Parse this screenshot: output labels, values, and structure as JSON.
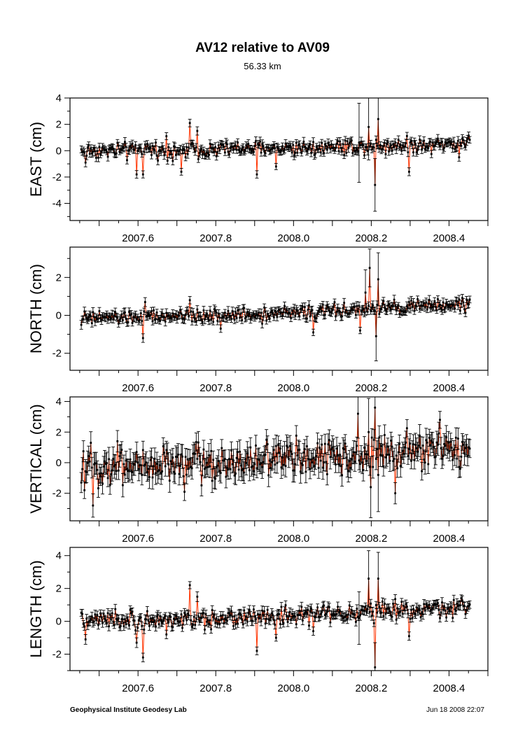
{
  "header": {
    "title": "AV12 relative to AV09",
    "subtitle": "56.33 km"
  },
  "footer": {
    "credit": "Geophysical Institute Geodesy Lab",
    "timestamp": "Jun 18 2008 22:07"
  },
  "colors": {
    "line": "#ff3300",
    "points": "#000000",
    "frame": "#000000"
  },
  "chart_data": [
    {
      "type": "line",
      "name": "east",
      "ylabel": "EAST (cm)",
      "xlim": [
        2007.425,
        2008.5
      ],
      "ylim": [
        -5.3,
        4.0
      ],
      "yticks": [
        -4,
        -2,
        0,
        2,
        4
      ],
      "xticks": [
        2007.6,
        2007.8,
        2008.0,
        2008.2,
        2008.4
      ],
      "xticklabels": [
        "2007.6",
        "2007.8",
        "2008.0",
        "2008.2",
        "2008.4"
      ],
      "series": {
        "x_start": 2007.454,
        "x_end": 2008.454,
        "baseline": 0.0,
        "trend": 0.6,
        "noise": 0.3,
        "sigma": 0.28
      },
      "features": [
        {
          "x": 2007.465,
          "y": -0.9
        },
        {
          "x": 2007.595,
          "y": -1.8
        },
        {
          "x": 2007.612,
          "y": -1.8
        },
        {
          "x": 2007.672,
          "y": 1.1
        },
        {
          "x": 2007.712,
          "y": -1.6
        },
        {
          "x": 2007.732,
          "y": 2.1
        },
        {
          "x": 2007.752,
          "y": 1.5
        },
        {
          "x": 2007.905,
          "y": -1.8
        },
        {
          "x": 2007.955,
          "y": -1.2
        },
        {
          "x": 2008.168,
          "y": 0.6,
          "e": 3.0
        },
        {
          "x": 2008.192,
          "y": 1.8,
          "e": 2.5
        },
        {
          "x": 2008.21,
          "y": -2.6,
          "e": 2.0
        },
        {
          "x": 2008.218,
          "y": 2.4,
          "e": 2.2
        },
        {
          "x": 2008.298,
          "y": -1.6
        },
        {
          "x": 2008.425,
          "y": -0.5
        }
      ]
    },
    {
      "type": "line",
      "name": "north",
      "ylabel": "NORTH (cm)",
      "xlim": [
        2007.425,
        2008.5
      ],
      "ylim": [
        -2.9,
        3.6
      ],
      "yticks": [
        -2,
        0,
        2
      ],
      "xticks": [
        2007.6,
        2007.8,
        2008.0,
        2008.2,
        2008.4
      ],
      "xticklabels": [
        "2007.6",
        "2007.8",
        "2008.0",
        "2008.2",
        "2008.4"
      ],
      "series": {
        "x_start": 2007.454,
        "x_end": 2008.454,
        "baseline": -0.15,
        "trend": 0.75,
        "noise": 0.18,
        "sigma": 0.2
      },
      "features": [
        {
          "x": 2007.455,
          "y": -0.5
        },
        {
          "x": 2007.612,
          "y": -1.2
        },
        {
          "x": 2007.618,
          "y": 0.7
        },
        {
          "x": 2007.732,
          "y": 0.8
        },
        {
          "x": 2007.812,
          "y": -0.7
        },
        {
          "x": 2008.052,
          "y": -0.9
        },
        {
          "x": 2008.172,
          "y": -0.8
        },
        {
          "x": 2008.185,
          "y": 1.2,
          "e": 1.2
        },
        {
          "x": 2008.195,
          "y": 2.5,
          "e": 1.0
        },
        {
          "x": 2008.212,
          "y": -1.1,
          "e": 1.3
        },
        {
          "x": 2008.218,
          "y": 1.9,
          "e": 1.4
        },
        {
          "x": 2008.298,
          "y": 0.7
        }
      ]
    },
    {
      "type": "line",
      "name": "vertical",
      "ylabel": "VERTICAL (cm)",
      "xlim": [
        2007.425,
        2008.5
      ],
      "ylim": [
        -3.8,
        4.3
      ],
      "yticks": [
        -2,
        0,
        2,
        4
      ],
      "xticks": [
        2007.6,
        2007.8,
        2008.0,
        2008.2,
        2008.4
      ],
      "xticklabels": [
        "2007.6",
        "2007.8",
        "2008.0",
        "2008.2",
        "2008.4"
      ],
      "series": {
        "x_start": 2007.454,
        "x_end": 2008.454,
        "baseline": -0.2,
        "trend": 1.2,
        "noise": 0.6,
        "sigma": 0.65
      },
      "features": [
        {
          "x": 2007.455,
          "y": -1.3
        },
        {
          "x": 2007.462,
          "y": -1.8
        },
        {
          "x": 2007.483,
          "y": -2.8
        },
        {
          "x": 2007.548,
          "y": 1.4
        },
        {
          "x": 2007.72,
          "y": -1.9
        },
        {
          "x": 2007.93,
          "y": 1.5
        },
        {
          "x": 2008.165,
          "y": 3.2,
          "e": 1.6
        },
        {
          "x": 2008.192,
          "y": 2.0,
          "e": 2.2
        },
        {
          "x": 2008.2,
          "y": -1.6,
          "e": 2.0
        },
        {
          "x": 2008.21,
          "y": 3.6,
          "e": 2.0
        },
        {
          "x": 2008.218,
          "y": -0.8,
          "e": 2.4
        },
        {
          "x": 2008.262,
          "y": -2.0
        },
        {
          "x": 2008.378,
          "y": 2.8
        },
        {
          "x": 2008.43,
          "y": -0.4
        }
      ]
    },
    {
      "type": "line",
      "name": "length",
      "ylabel": "LENGTH (cm)",
      "xlim": [
        2007.425,
        2008.5
      ],
      "ylim": [
        -3.0,
        4.5
      ],
      "yticks": [
        -2,
        0,
        2,
        4
      ],
      "xticks": [
        2007.6,
        2007.8,
        2008.0,
        2008.2,
        2008.4
      ],
      "xticklabels": [
        "2007.6",
        "2007.8",
        "2008.0",
        "2008.2",
        "2008.4"
      ],
      "series": {
        "x_start": 2007.454,
        "x_end": 2008.454,
        "baseline": 0.0,
        "trend": 0.9,
        "noise": 0.28,
        "sigma": 0.25
      },
      "features": [
        {
          "x": 2007.465,
          "y": -1.1
        },
        {
          "x": 2007.595,
          "y": -1.3
        },
        {
          "x": 2007.612,
          "y": -2.2
        },
        {
          "x": 2007.672,
          "y": -0.8
        },
        {
          "x": 2007.732,
          "y": 2.2
        },
        {
          "x": 2007.752,
          "y": 1.5
        },
        {
          "x": 2007.905,
          "y": -1.8
        },
        {
          "x": 2007.955,
          "y": -1.0
        },
        {
          "x": 2008.052,
          "y": -0.6
        },
        {
          "x": 2008.168,
          "y": 0.2,
          "e": 1.6
        },
        {
          "x": 2008.192,
          "y": 2.6,
          "e": 1.7
        },
        {
          "x": 2008.21,
          "y": -2.8,
          "e": 1.5
        },
        {
          "x": 2008.218,
          "y": 2.6,
          "e": 1.6
        },
        {
          "x": 2008.298,
          "y": -0.9
        },
        {
          "x": 2008.378,
          "y": 0.2
        }
      ]
    }
  ]
}
